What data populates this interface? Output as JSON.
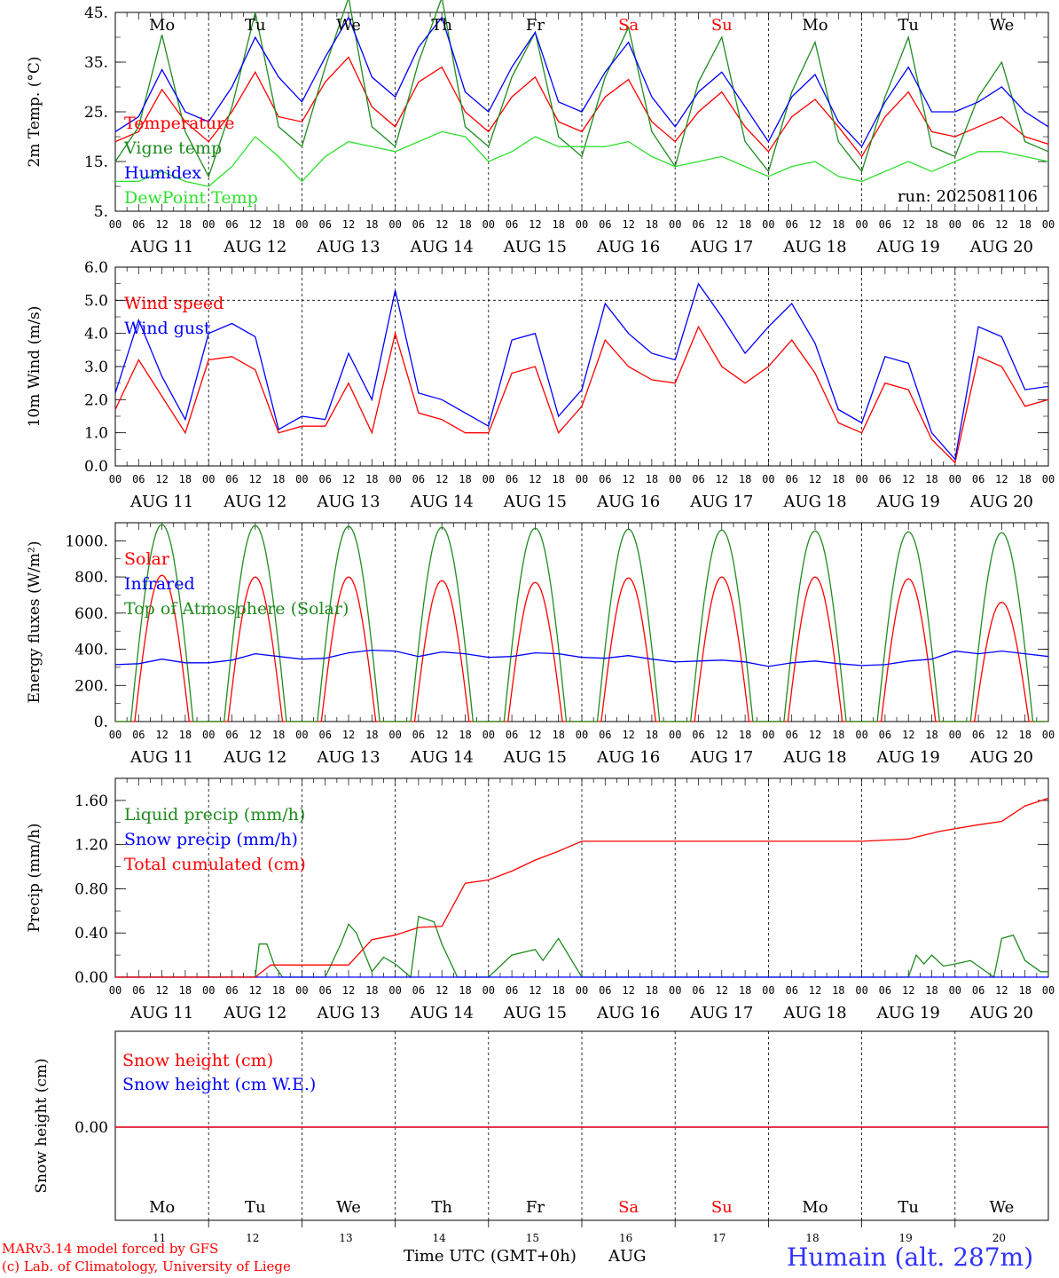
{
  "colors": {
    "red": "#ff0000",
    "green": "#1f8c1f",
    "blue": "#0000ff",
    "lightgreen": "#2ee02e"
  },
  "days": {
    "weekday": [
      "Mo",
      "Tu",
      "We",
      "Th",
      "Fr",
      "Sa",
      "Su",
      "Mo",
      "Tu",
      "We"
    ],
    "weekend": [
      false,
      false,
      false,
      false,
      false,
      true,
      true,
      false,
      false,
      false
    ],
    "dates": [
      "AUG 11",
      "AUG 12",
      "AUG 13",
      "AUG 14",
      "AUG 15",
      "AUG 16",
      "AUG 17",
      "AUG 18",
      "AUG 19",
      "AUG 20"
    ],
    "day_numbers": [
      "11",
      "12",
      "13",
      "14",
      "15",
      "16",
      "17",
      "18",
      "19",
      "20"
    ]
  },
  "hour_ticks": [
    "00",
    "06",
    "12",
    "18"
  ],
  "footer": {
    "model": "MARv3.14 model forced by GFS",
    "credit": "(c) Lab. of Climatology, University of Liege",
    "xlabel": "Time UTC (GMT+0h)",
    "month": "AUG",
    "station": "Humain (alt. 287m)"
  },
  "chart_data": [
    {
      "type": "line",
      "ylabel": "2m Temp. (°C)",
      "ylim": [
        5,
        45
      ],
      "yticks": [
        "45.",
        "35.",
        "25.",
        "15.",
        "5."
      ],
      "ytick_values": [
        45,
        35,
        25,
        15,
        5
      ],
      "annotation": "run: 2025081106",
      "series": [
        {
          "name": "Temperature",
          "color": "red",
          "x_hours": [
            0,
            6,
            12,
            18,
            24,
            30,
            36,
            42,
            48,
            54,
            60,
            66,
            72,
            78,
            84,
            90,
            96,
            102,
            108,
            114,
            120,
            126,
            132,
            138,
            144,
            150,
            156,
            162,
            168,
            174,
            180,
            186,
            192,
            198,
            204,
            210,
            216,
            222,
            228,
            234,
            240
          ],
          "values": [
            19,
            21,
            29.5,
            23,
            19,
            25,
            33,
            24,
            23,
            31,
            36,
            26,
            22,
            31,
            34,
            25,
            21,
            28,
            32,
            23,
            21,
            28,
            31.5,
            23,
            19,
            25,
            29,
            22,
            17,
            24,
            27.5,
            22,
            16,
            24,
            29,
            21,
            20,
            22,
            24,
            20,
            18.5
          ]
        },
        {
          "name": "Vigne temp",
          "color": "green",
          "x_hours": [
            0,
            6,
            12,
            18,
            24,
            30,
            36,
            42,
            48,
            54,
            60,
            66,
            72,
            78,
            84,
            90,
            96,
            102,
            108,
            114,
            120,
            126,
            132,
            138,
            144,
            150,
            156,
            162,
            168,
            174,
            180,
            186,
            192,
            198,
            204,
            210,
            216,
            222,
            228,
            234,
            240
          ],
          "values": [
            15,
            22,
            40.5,
            21,
            12,
            26,
            45,
            22,
            18,
            34,
            48,
            22,
            18,
            35,
            48,
            22,
            18,
            32,
            41,
            20,
            16,
            32,
            42,
            21,
            14,
            31,
            40,
            19,
            13,
            29,
            39,
            19,
            13,
            28,
            40,
            18,
            16,
            28,
            35,
            19,
            17
          ]
        },
        {
          "name": "Humidex",
          "color": "blue",
          "x_hours": [
            0,
            6,
            12,
            18,
            24,
            30,
            36,
            42,
            48,
            54,
            60,
            66,
            72,
            78,
            84,
            90,
            96,
            102,
            108,
            114,
            120,
            126,
            132,
            138,
            144,
            150,
            156,
            162,
            168,
            174,
            180,
            186,
            192,
            198,
            204,
            210,
            216,
            222,
            228,
            234,
            240
          ],
          "values": [
            21,
            24,
            33.5,
            25,
            23,
            30,
            40,
            32,
            27,
            36,
            44,
            32,
            28,
            38,
            44,
            29,
            25,
            34,
            41,
            27,
            25,
            33,
            39,
            28,
            22,
            29,
            33,
            26,
            19,
            28,
            32.5,
            23,
            18,
            27,
            34,
            25,
            25,
            27,
            30,
            25,
            22
          ]
        },
        {
          "name": "DewPoint Temp",
          "color": "lightgreen",
          "x_hours": [
            0,
            6,
            12,
            18,
            24,
            30,
            36,
            42,
            48,
            54,
            60,
            66,
            72,
            78,
            84,
            90,
            96,
            102,
            108,
            114,
            120,
            126,
            132,
            138,
            144,
            150,
            156,
            162,
            168,
            174,
            180,
            186,
            192,
            198,
            204,
            210,
            216,
            222,
            228,
            234,
            240
          ],
          "values": [
            11,
            11,
            13,
            11,
            10,
            14,
            20,
            16,
            11,
            16,
            19,
            18,
            17,
            19,
            21,
            20,
            15,
            17,
            20,
            18,
            18,
            18,
            19,
            16,
            14,
            15,
            16,
            14,
            12,
            14,
            15,
            12,
            11,
            13,
            15,
            13,
            15,
            17,
            17,
            16,
            15
          ]
        }
      ]
    },
    {
      "type": "line",
      "ylabel": "10m Wind (m/s)",
      "ylim": [
        0,
        6
      ],
      "yticks": [
        "6.0",
        "5.0",
        "4.0",
        "3.0",
        "2.0",
        "1.0",
        "0.0"
      ],
      "ytick_values": [
        6,
        5,
        4,
        3,
        2,
        1,
        0
      ],
      "reference_line": 5,
      "series": [
        {
          "name": "Wind speed",
          "color": "red",
          "x_hours": [
            0,
            6,
            12,
            18,
            24,
            30,
            36,
            42,
            48,
            54,
            60,
            66,
            72,
            78,
            84,
            90,
            96,
            102,
            108,
            114,
            120,
            126,
            132,
            138,
            144,
            150,
            156,
            162,
            168,
            174,
            180,
            186,
            192,
            198,
            204,
            210,
            216,
            222,
            228,
            234,
            240
          ],
          "values": [
            1.7,
            3.2,
            2.1,
            1.0,
            3.2,
            3.3,
            2.9,
            1.0,
            1.2,
            1.2,
            2.5,
            1.0,
            4.0,
            1.6,
            1.4,
            1.0,
            1.0,
            2.8,
            3.0,
            1.0,
            1.8,
            3.8,
            3.0,
            2.6,
            2.5,
            4.2,
            3.0,
            2.5,
            3.0,
            3.8,
            2.8,
            1.3,
            1.0,
            2.5,
            2.3,
            0.8,
            0.1,
            3.3,
            3.0,
            1.8,
            2.0
          ]
        },
        {
          "name": "Wind gust",
          "color": "blue",
          "x_hours": [
            0,
            6,
            12,
            18,
            24,
            30,
            36,
            42,
            48,
            54,
            60,
            66,
            72,
            78,
            84,
            90,
            96,
            102,
            108,
            114,
            120,
            126,
            132,
            138,
            144,
            150,
            156,
            162,
            168,
            174,
            180,
            186,
            192,
            198,
            204,
            210,
            216,
            222,
            228,
            234,
            240
          ],
          "values": [
            2.2,
            4.4,
            2.7,
            1.4,
            4.0,
            4.3,
            3.9,
            1.1,
            1.5,
            1.4,
            3.4,
            2.0,
            5.3,
            2.2,
            2.0,
            1.6,
            1.2,
            3.8,
            4.0,
            1.5,
            2.3,
            4.9,
            4.0,
            3.4,
            3.2,
            5.5,
            4.5,
            3.4,
            4.2,
            4.9,
            3.7,
            1.7,
            1.3,
            3.3,
            3.1,
            1.0,
            0.2,
            4.2,
            3.9,
            2.3,
            2.4
          ]
        }
      ]
    },
    {
      "type": "line",
      "ylabel": "Energy fluxes (W/m²)",
      "ylim": [
        0,
        1100
      ],
      "yticks": [
        "1000.",
        "800.",
        "600.",
        "400.",
        "200.",
        "0."
      ],
      "ytick_values": [
        1000,
        800,
        600,
        400,
        200,
        0
      ],
      "series": [
        {
          "name": "Solar",
          "color": "red",
          "daily_peak": [
            810,
            800,
            800,
            780,
            770,
            795,
            800,
            800,
            790,
            660
          ]
        },
        {
          "name": "Infrared",
          "color": "blue",
          "x_hours": [
            0,
            6,
            12,
            18,
            24,
            30,
            36,
            42,
            48,
            54,
            60,
            66,
            72,
            78,
            84,
            90,
            96,
            102,
            108,
            114,
            120,
            126,
            132,
            138,
            144,
            150,
            156,
            162,
            168,
            174,
            180,
            186,
            192,
            198,
            204,
            210,
            216,
            222,
            228,
            234,
            240
          ],
          "values": [
            315,
            320,
            345,
            325,
            325,
            340,
            375,
            360,
            345,
            350,
            380,
            395,
            390,
            360,
            385,
            375,
            355,
            360,
            380,
            375,
            355,
            350,
            365,
            345,
            330,
            335,
            340,
            330,
            305,
            325,
            335,
            320,
            310,
            315,
            335,
            345,
            390,
            375,
            390,
            375,
            360
          ]
        },
        {
          "name": "Top of Atmosphere (Solar)",
          "color": "green",
          "daily_peak": [
            1090,
            1085,
            1080,
            1075,
            1070,
            1065,
            1060,
            1055,
            1050,
            1045
          ]
        }
      ]
    },
    {
      "type": "line",
      "ylabel": "Precip (mm/h)",
      "ylim": [
        0,
        1.8
      ],
      "yticks": [
        "1.60",
        "1.20",
        "0.80",
        "0.40",
        "0.00"
      ],
      "ytick_values": [
        1.6,
        1.2,
        0.8,
        0.4,
        0
      ],
      "series": [
        {
          "name": "Liquid precip (mm/h)",
          "color": "green",
          "x_hours": [
            0,
            12,
            24,
            36,
            37,
            39,
            41,
            43,
            48,
            54,
            58,
            60,
            62,
            66,
            69,
            72,
            76,
            78,
            82,
            84,
            88,
            90,
            96,
            102,
            108,
            110,
            114,
            120,
            144,
            168,
            192,
            204,
            206,
            208,
            210,
            213,
            216,
            220,
            222,
            226,
            228,
            231,
            234,
            238,
            240
          ],
          "values": [
            0,
            0,
            0,
            0,
            0.3,
            0.3,
            0.1,
            0,
            0,
            0,
            0.3,
            0.48,
            0.4,
            0.05,
            0.18,
            0.12,
            0,
            0.55,
            0.5,
            0.3,
            0,
            0,
            0,
            0.2,
            0.25,
            0.15,
            0.35,
            0,
            0,
            0,
            0,
            0,
            0.2,
            0.12,
            0.2,
            0.1,
            0.12,
            0.15,
            0.1,
            0,
            0.35,
            0.38,
            0.15,
            0.05,
            0.05
          ]
        },
        {
          "name": "Snow precip (mm/h)",
          "color": "blue",
          "x_hours": [
            0,
            240
          ],
          "values": [
            0,
            0
          ]
        },
        {
          "name": "Total cumulated (cm)",
          "color": "red",
          "x_hours": [
            0,
            36,
            40,
            60,
            66,
            72,
            78,
            84,
            90,
            96,
            102,
            108,
            114,
            120,
            192,
            204,
            212,
            222,
            228,
            234,
            240
          ],
          "values": [
            0,
            0,
            0.11,
            0.11,
            0.34,
            0.38,
            0.45,
            0.46,
            0.85,
            0.88,
            0.96,
            1.06,
            1.14,
            1.23,
            1.23,
            1.25,
            1.32,
            1.38,
            1.41,
            1.55,
            1.62
          ]
        }
      ]
    },
    {
      "type": "line",
      "ylabel": "Snow height (cm)",
      "yticks": [
        "0.00"
      ],
      "series": [
        {
          "name": "Snow height (cm)",
          "color": "red",
          "x_hours": [
            0,
            240
          ],
          "values": [
            0,
            0
          ]
        },
        {
          "name": "Snow height (cm W.E.)",
          "color": "blue",
          "x_hours": [
            0,
            240
          ],
          "values": [
            0,
            0
          ]
        }
      ]
    }
  ]
}
